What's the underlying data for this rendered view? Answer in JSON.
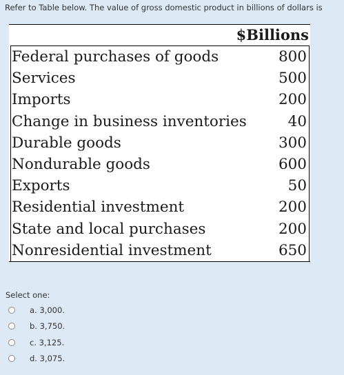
{
  "question": {
    "text": "Refer to Table below. The value of gross domestic product in billions of dollars is"
  },
  "table": {
    "column_header": "$Billions",
    "rows": [
      {
        "label": "Federal purchases of goods",
        "value": "800"
      },
      {
        "label": "Services",
        "value": "500"
      },
      {
        "label": "Imports",
        "value": "200"
      },
      {
        "label": "Change in business inventories",
        "value": "40"
      },
      {
        "label": "Durable goods",
        "value": "300"
      },
      {
        "label": "Nondurable goods",
        "value": "600"
      },
      {
        "label": "Exports",
        "value": "50"
      },
      {
        "label": "Residential investment",
        "value": "200"
      },
      {
        "label": "State and local purchases",
        "value": "200"
      },
      {
        "label": "Nonresidential investment",
        "value": "650"
      }
    ]
  },
  "answers": {
    "prompt": "Select one:",
    "options": [
      {
        "label": "a. 3,000."
      },
      {
        "label": "b. 3,750."
      },
      {
        "label": "c. 3,125."
      },
      {
        "label": "d. 3,075."
      }
    ]
  }
}
